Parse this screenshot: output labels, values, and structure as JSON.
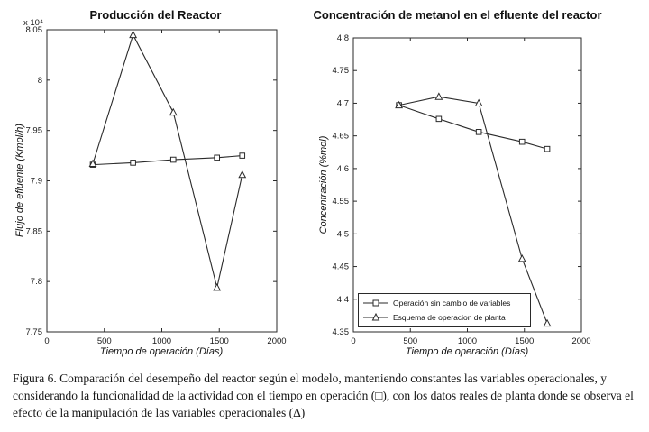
{
  "caption": "Figura 6. Comparación del desempeño del reactor según el modelo, manteniendo constantes las variables operacionales, y considerando la funcionalidad de la actividad con el tiempo en operación (□), con los datos reales de planta donde se observa el efecto de la manipulación de las variables operacionales (Δ)",
  "chart_data": [
    {
      "type": "line",
      "title": "Producción del Reactor",
      "xlabel": "Tiempo de operación (Días)",
      "ylabel": "Flujo de efluente (Kmol/h)",
      "y_scale_label": "x 10⁴",
      "xlim": [
        0,
        2000
      ],
      "ylim": [
        7.75,
        8.05
      ],
      "xticks": [
        0,
        500,
        1000,
        1500,
        2000
      ],
      "xtick_labels": [
        "0",
        "500",
        "1000",
        "1500",
        "2000"
      ],
      "yticks": [
        7.75,
        7.8,
        7.85,
        7.9,
        7.95,
        8,
        8.05
      ],
      "ytick_labels": [
        "7.75",
        "7.8",
        "7.85",
        "7.9",
        "7.95",
        "8",
        "8.05"
      ],
      "grid": false,
      "legend_position": "none",
      "x": [
        400,
        750,
        1100,
        1480,
        1700
      ],
      "series": [
        {
          "name": "Operación sin cambio de variables",
          "marker": "square",
          "values": [
            7.916,
            7.918,
            7.921,
            7.923,
            7.925
          ]
        },
        {
          "name": "Esquema de operacion de planta",
          "marker": "triangle",
          "values": [
            7.917,
            8.045,
            7.968,
            7.794,
            7.906
          ]
        }
      ]
    },
    {
      "type": "line",
      "title": "Concentración de metanol en el efluente del reactor",
      "xlabel": "Tiempo de operación (Días)",
      "ylabel": "Concentración (%mol)",
      "xlim": [
        0,
        2000
      ],
      "ylim": [
        4.35,
        4.8
      ],
      "xticks": [
        0,
        500,
        1000,
        1500,
        2000
      ],
      "xtick_labels": [
        "0",
        "500",
        "1000",
        "1500",
        "2000"
      ],
      "yticks": [
        4.35,
        4.4,
        4.45,
        4.5,
        4.55,
        4.6,
        4.65,
        4.7,
        4.75,
        4.8
      ],
      "ytick_labels": [
        "4.35",
        "4.4",
        "4.45",
        "4.5",
        "4.55",
        "4.6",
        "4.65",
        "4.7",
        "4.75",
        "4.8"
      ],
      "grid": false,
      "legend_position": "lower left",
      "x": [
        400,
        750,
        1100,
        1480,
        1700
      ],
      "series": [
        {
          "name": "Operación sin cambio de variables",
          "marker": "square",
          "values": [
            4.697,
            4.676,
            4.656,
            4.641,
            4.63
          ]
        },
        {
          "name": "Esquema de operacion de planta",
          "marker": "triangle",
          "values": [
            4.697,
            4.71,
            4.7,
            4.462,
            4.363
          ]
        }
      ]
    }
  ]
}
